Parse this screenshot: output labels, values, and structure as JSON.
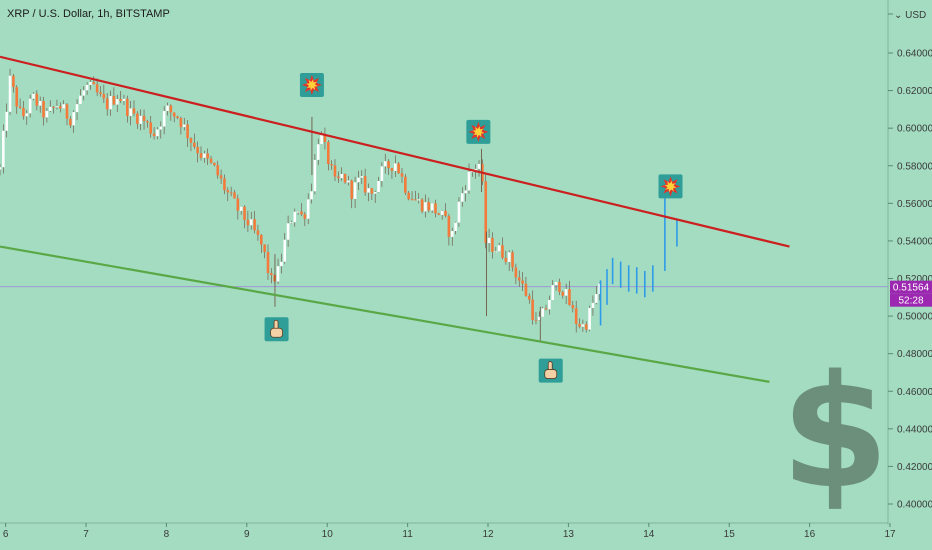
{
  "header": {
    "symbol_title": "XRP / U.S. Dollar, 1h, BITSTAMP",
    "currency": "USD"
  },
  "price_badge": {
    "last_price": "0.51564",
    "countdown": "52:28",
    "color": "#9c27b0"
  },
  "chart_data": {
    "type": "candlestick",
    "title": "XRP / U.S. Dollar, 1h, BITSTAMP",
    "y_axis": {
      "unit": "USD",
      "ticks": [
        0.4,
        0.42,
        0.44,
        0.46,
        0.48,
        0.5,
        0.52,
        0.54,
        0.56,
        0.58,
        0.6,
        0.62,
        0.64
      ],
      "ylim": [
        0.387,
        0.665
      ]
    },
    "x_axis": {
      "ticks": [
        "6",
        "7",
        "8",
        "9",
        "10",
        "11",
        "12",
        "13",
        "14",
        "15",
        "16",
        "17"
      ],
      "xlim": [
        5.93,
        17.0
      ]
    },
    "price_line": 0.51564,
    "colors": {
      "up": "#ffffff",
      "down": "#f37a3a",
      "projection": "#2e9be8",
      "resistance": "#cc1f1f",
      "support": "#5aa845",
      "background": "#a3dcc1"
    },
    "price_path": [
      [
        5.93,
        0.578
      ],
      [
        6.05,
        0.626
      ],
      [
        6.2,
        0.605
      ],
      [
        6.35,
        0.616
      ],
      [
        6.5,
        0.606
      ],
      [
        6.65,
        0.613
      ],
      [
        6.8,
        0.605
      ],
      [
        6.9,
        0.614
      ],
      [
        7.0,
        0.622
      ],
      [
        7.1,
        0.62
      ],
      [
        7.25,
        0.612
      ],
      [
        7.4,
        0.618
      ],
      [
        7.55,
        0.608
      ],
      [
        7.7,
        0.605
      ],
      [
        7.85,
        0.597
      ],
      [
        8.0,
        0.61
      ],
      [
        8.15,
        0.606
      ],
      [
        8.3,
        0.594
      ],
      [
        8.45,
        0.585
      ],
      [
        8.6,
        0.578
      ],
      [
        8.75,
        0.566
      ],
      [
        8.9,
        0.556
      ],
      [
        9.05,
        0.548
      ],
      [
        9.2,
        0.536
      ],
      [
        9.3,
        0.518
      ],
      [
        9.4,
        0.524
      ],
      [
        9.5,
        0.545
      ],
      [
        9.6,
        0.558
      ],
      [
        9.7,
        0.552
      ],
      [
        9.8,
        0.568
      ],
      [
        9.9,
        0.598
      ],
      [
        10.0,
        0.585
      ],
      [
        10.1,
        0.57
      ],
      [
        10.2,
        0.575
      ],
      [
        10.3,
        0.566
      ],
      [
        10.4,
        0.572
      ],
      [
        10.55,
        0.565
      ],
      [
        10.7,
        0.578
      ],
      [
        10.85,
        0.582
      ],
      [
        11.0,
        0.566
      ],
      [
        11.15,
        0.56
      ],
      [
        11.3,
        0.558
      ],
      [
        11.45,
        0.552
      ],
      [
        11.55,
        0.542
      ],
      [
        11.65,
        0.562
      ],
      [
        11.75,
        0.574
      ],
      [
        11.85,
        0.58
      ],
      [
        11.92,
        0.582
      ],
      [
        11.95,
        0.54
      ],
      [
        12.1,
        0.536
      ],
      [
        12.25,
        0.532
      ],
      [
        12.4,
        0.518
      ],
      [
        12.5,
        0.51
      ],
      [
        12.6,
        0.495
      ],
      [
        12.7,
        0.502
      ],
      [
        12.8,
        0.514
      ],
      [
        12.9,
        0.517
      ],
      [
        13.0,
        0.508
      ],
      [
        13.1,
        0.497
      ],
      [
        13.2,
        0.494
      ],
      [
        13.3,
        0.506
      ],
      [
        13.4,
        0.516
      ]
    ],
    "projection": [
      [
        13.55,
        0.525
      ],
      [
        13.65,
        0.523
      ],
      [
        13.75,
        0.521
      ],
      [
        13.85,
        0.52
      ],
      [
        13.95,
        0.518
      ],
      [
        14.05,
        0.521
      ],
      [
        14.2,
        0.55
      ],
      [
        14.35,
        0.545
      ]
    ],
    "trendlines": [
      {
        "name": "resistance",
        "points": [
          [
            5.93,
            0.638
          ],
          [
            15.75,
            0.537
          ]
        ]
      },
      {
        "name": "support",
        "points": [
          [
            5.93,
            0.537
          ],
          [
            15.5,
            0.465
          ]
        ]
      }
    ],
    "annotations": [
      {
        "icon": "collision-icon",
        "x": 9.81,
        "y": 0.623
      },
      {
        "icon": "collision-icon",
        "x": 11.88,
        "y": 0.598
      },
      {
        "icon": "collision-icon",
        "x": 14.27,
        "y": 0.569
      },
      {
        "icon": "pointing-hand-icon",
        "x": 9.37,
        "y": 0.493
      },
      {
        "icon": "pointing-hand-icon",
        "x": 12.78,
        "y": 0.471
      }
    ],
    "watermark_glyph": "$"
  }
}
